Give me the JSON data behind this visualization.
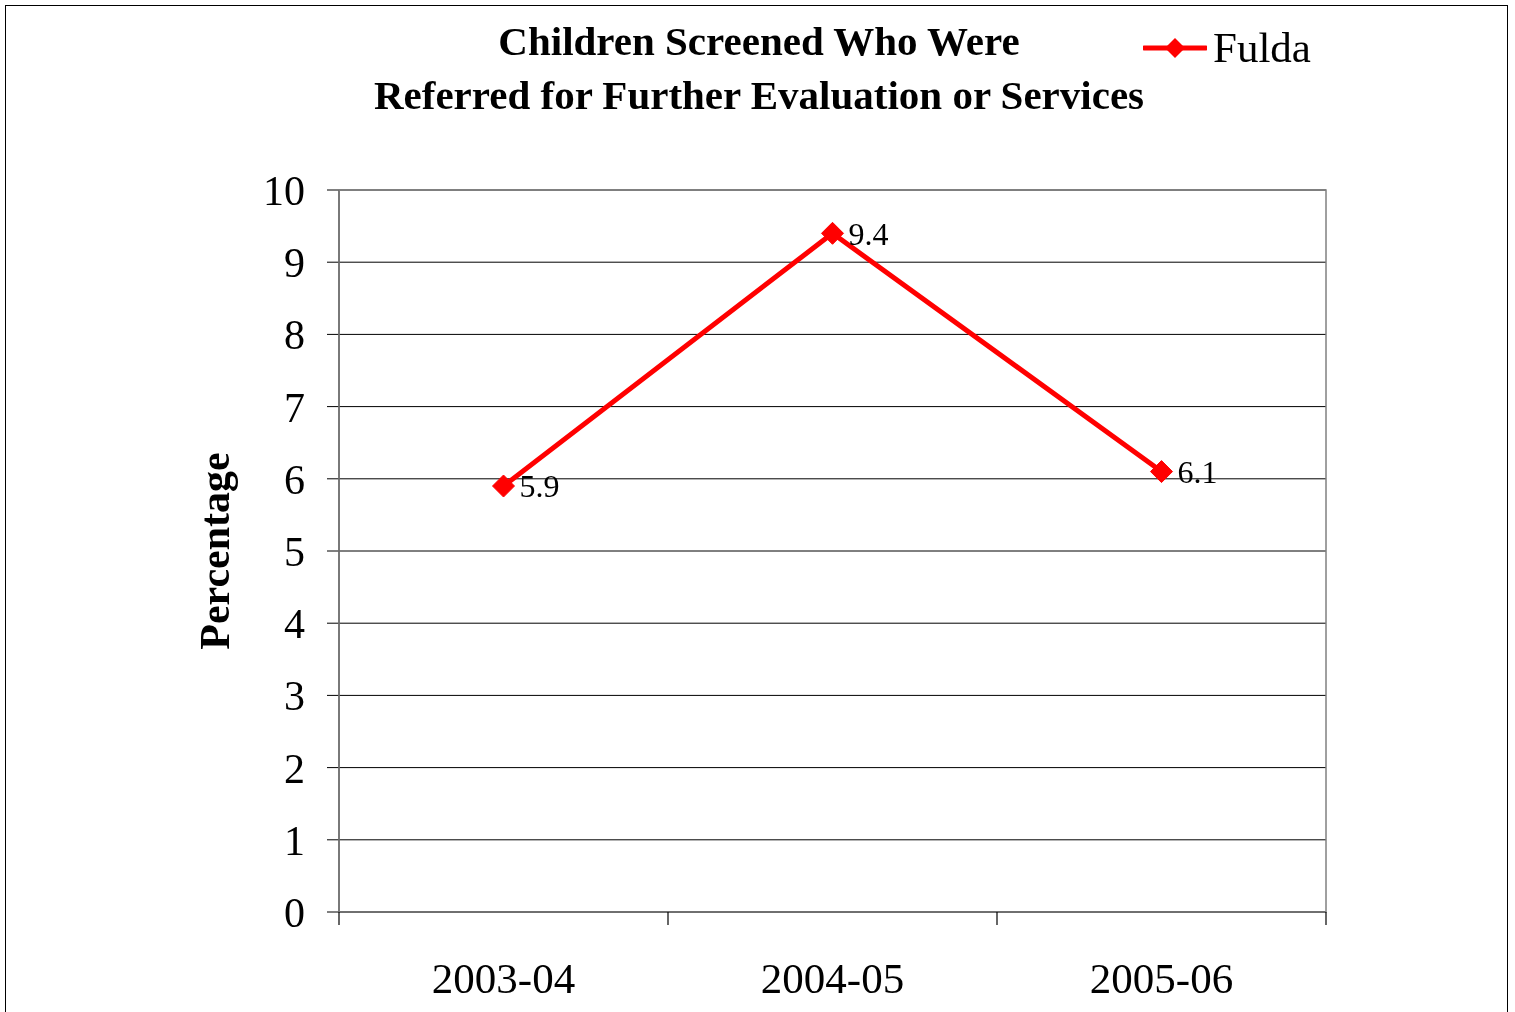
{
  "chart_data": {
    "type": "line",
    "title": "Children Screened Who Were\nReferred for Further Evaluation or Services",
    "ylabel": "Percentage",
    "categories": [
      "2003-04",
      "2004-05",
      "2005-06"
    ],
    "series": [
      {
        "name": "Fulda",
        "color": "#ff0000",
        "values": [
          5.9,
          9.4,
          6.1
        ]
      }
    ],
    "ylim": [
      0,
      10
    ],
    "yticks": [
      0,
      1,
      2,
      3,
      4,
      5,
      6,
      7,
      8,
      9,
      10
    ],
    "grid": "y",
    "legend": "top right",
    "marker": "diamond",
    "line_style": "solid",
    "data_labels": true
  }
}
